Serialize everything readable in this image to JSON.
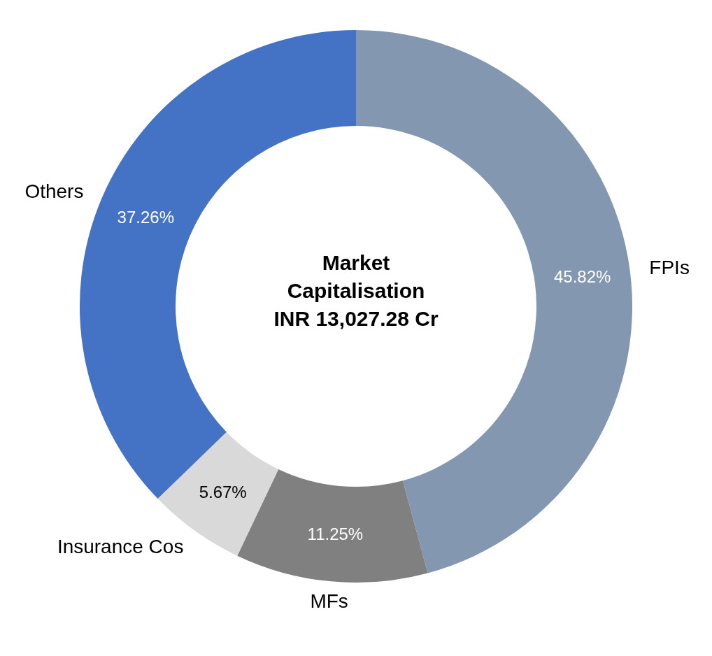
{
  "chart_data": {
    "type": "donut",
    "title": "Market Capitalisation",
    "subtitle": "INR 13,027.28 Cr",
    "categories": [
      "FPIs",
      "MFs",
      "Insurance Cos",
      "Others"
    ],
    "values": [
      45.82,
      11.25,
      5.67,
      37.26
    ],
    "value_labels": [
      "45.82%",
      "11.25%",
      "5.67%",
      "37.26%"
    ],
    "colors": [
      "#8497b0",
      "#808080",
      "#d9d9d9",
      "#4472c4"
    ]
  }
}
